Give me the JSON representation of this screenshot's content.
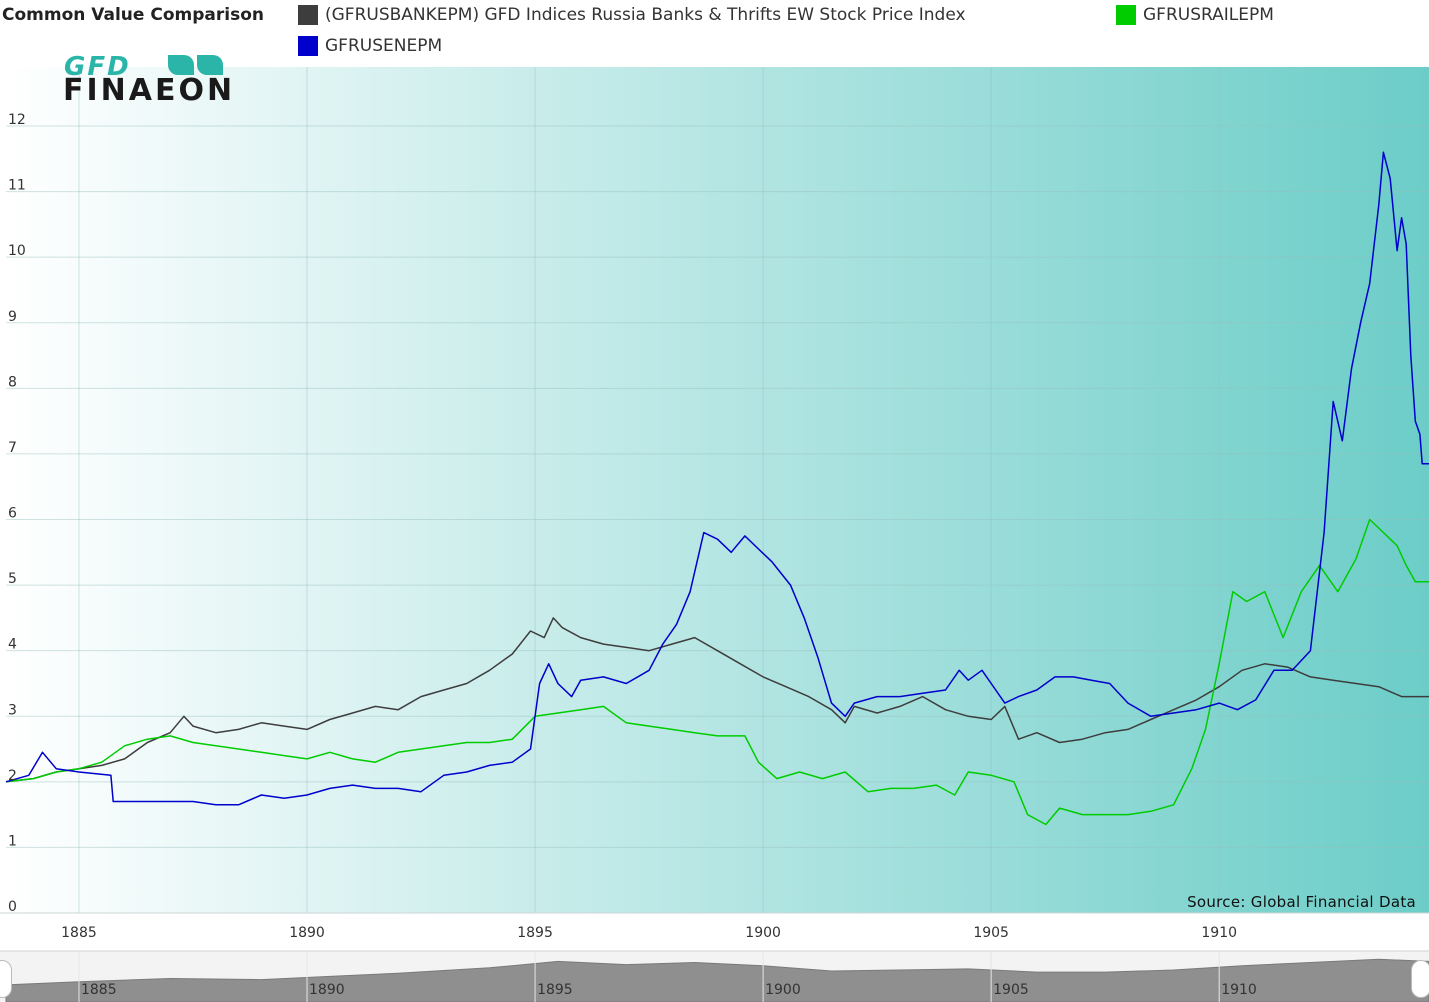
{
  "header": {
    "title": "Common Value Comparison",
    "source": "Source: Global Financial Data",
    "logo_top": "GFD",
    "logo_bottom": "FINAEON"
  },
  "legend": [
    {
      "label": "(GFRUSBANKEPM) GFD Indices Russia Banks & Thrifts EW Stock Price Index",
      "color": "#3d3d3d"
    },
    {
      "label": "GFRUSRAILEPM",
      "color": "#00cc00"
    },
    {
      "label": "GFRUSENEPM",
      "color": "#0000cc"
    }
  ],
  "colors": {
    "plot_bg_start": "#ffffff",
    "plot_bg_end": "#6ccdc8",
    "grid": "#d0e4e4",
    "navigator_fill": "#8a8a8a",
    "axis_text": "#333333"
  },
  "chart_data": {
    "type": "line",
    "title": "Common Value Comparison",
    "xlim": [
      1883.4,
      1914.6
    ],
    "ylim": [
      0,
      12.9
    ],
    "x_ticks": [
      1885,
      1890,
      1895,
      1900,
      1905,
      1910
    ],
    "x_tick_labels": [
      "1885",
      "1890",
      "1895",
      "1900",
      "1905",
      "1910"
    ],
    "y_ticks": [
      0,
      1,
      2,
      3,
      4,
      5,
      6,
      7,
      8,
      9,
      10,
      11,
      12
    ],
    "y_tick_labels": [
      "0",
      "1",
      "2",
      "3",
      "4",
      "5",
      "6",
      "7",
      "8",
      "9",
      "10",
      "11",
      "12"
    ],
    "grid": true,
    "legend_position": "top",
    "series": [
      {
        "name": "(GFRUSBANKEPM) GFD Indices Russia Banks & Thrifts EW Stock Price Index",
        "color": "#3d3d3d",
        "points": [
          [
            1883.4,
            2.0
          ],
          [
            1884.0,
            2.05
          ],
          [
            1884.5,
            2.15
          ],
          [
            1885.0,
            2.2
          ],
          [
            1885.5,
            2.25
          ],
          [
            1886.0,
            2.35
          ],
          [
            1886.5,
            2.6
          ],
          [
            1887.0,
            2.75
          ],
          [
            1887.3,
            3.0
          ],
          [
            1887.5,
            2.85
          ],
          [
            1888.0,
            2.75
          ],
          [
            1888.5,
            2.8
          ],
          [
            1889.0,
            2.9
          ],
          [
            1889.5,
            2.85
          ],
          [
            1890.0,
            2.8
          ],
          [
            1890.5,
            2.95
          ],
          [
            1891.0,
            3.05
          ],
          [
            1891.5,
            3.15
          ],
          [
            1892.0,
            3.1
          ],
          [
            1892.5,
            3.3
          ],
          [
            1893.0,
            3.4
          ],
          [
            1893.5,
            3.5
          ],
          [
            1894.0,
            3.7
          ],
          [
            1894.5,
            3.95
          ],
          [
            1894.9,
            4.3
          ],
          [
            1895.2,
            4.2
          ],
          [
            1895.4,
            4.5
          ],
          [
            1895.6,
            4.35
          ],
          [
            1896.0,
            4.2
          ],
          [
            1896.5,
            4.1
          ],
          [
            1897.0,
            4.05
          ],
          [
            1897.5,
            4.0
          ],
          [
            1898.0,
            4.1
          ],
          [
            1898.5,
            4.2
          ],
          [
            1899.0,
            4.0
          ],
          [
            1899.5,
            3.8
          ],
          [
            1900.0,
            3.6
          ],
          [
            1900.5,
            3.45
          ],
          [
            1901.0,
            3.3
          ],
          [
            1901.5,
            3.1
          ],
          [
            1901.8,
            2.9
          ],
          [
            1902.0,
            3.15
          ],
          [
            1902.5,
            3.05
          ],
          [
            1903.0,
            3.15
          ],
          [
            1903.5,
            3.3
          ],
          [
            1904.0,
            3.1
          ],
          [
            1904.5,
            3.0
          ],
          [
            1905.0,
            2.95
          ],
          [
            1905.3,
            3.15
          ],
          [
            1905.6,
            2.65
          ],
          [
            1906.0,
            2.75
          ],
          [
            1906.5,
            2.6
          ],
          [
            1907.0,
            2.65
          ],
          [
            1907.5,
            2.75
          ],
          [
            1908.0,
            2.8
          ],
          [
            1908.5,
            2.95
          ],
          [
            1909.0,
            3.1
          ],
          [
            1909.5,
            3.25
          ],
          [
            1910.0,
            3.45
          ],
          [
            1910.5,
            3.7
          ],
          [
            1911.0,
            3.8
          ],
          [
            1911.5,
            3.75
          ],
          [
            1912.0,
            3.6
          ],
          [
            1912.5,
            3.55
          ],
          [
            1913.0,
            3.5
          ],
          [
            1913.5,
            3.45
          ],
          [
            1914.0,
            3.3
          ],
          [
            1914.6,
            3.3
          ]
        ]
      },
      {
        "name": "GFRUSRAILEPM",
        "color": "#00cc00",
        "points": [
          [
            1883.4,
            2.0
          ],
          [
            1884.0,
            2.05
          ],
          [
            1884.5,
            2.15
          ],
          [
            1885.0,
            2.2
          ],
          [
            1885.5,
            2.3
          ],
          [
            1886.0,
            2.55
          ],
          [
            1886.5,
            2.65
          ],
          [
            1887.0,
            2.7
          ],
          [
            1887.5,
            2.6
          ],
          [
            1888.0,
            2.55
          ],
          [
            1888.5,
            2.5
          ],
          [
            1889.0,
            2.45
          ],
          [
            1889.5,
            2.4
          ],
          [
            1890.0,
            2.35
          ],
          [
            1890.5,
            2.45
          ],
          [
            1891.0,
            2.35
          ],
          [
            1891.5,
            2.3
          ],
          [
            1892.0,
            2.45
          ],
          [
            1892.5,
            2.5
          ],
          [
            1893.0,
            2.55
          ],
          [
            1893.5,
            2.6
          ],
          [
            1894.0,
            2.6
          ],
          [
            1894.5,
            2.65
          ],
          [
            1895.0,
            3.0
          ],
          [
            1895.5,
            3.05
          ],
          [
            1896.0,
            3.1
          ],
          [
            1896.5,
            3.15
          ],
          [
            1897.0,
            2.9
          ],
          [
            1897.5,
            2.85
          ],
          [
            1898.0,
            2.8
          ],
          [
            1898.5,
            2.75
          ],
          [
            1899.0,
            2.7
          ],
          [
            1899.6,
            2.7
          ],
          [
            1899.9,
            2.3
          ],
          [
            1900.3,
            2.05
          ],
          [
            1900.8,
            2.15
          ],
          [
            1901.3,
            2.05
          ],
          [
            1901.8,
            2.15
          ],
          [
            1902.3,
            1.85
          ],
          [
            1902.8,
            1.9
          ],
          [
            1903.3,
            1.9
          ],
          [
            1903.8,
            1.95
          ],
          [
            1904.2,
            1.8
          ],
          [
            1904.5,
            2.15
          ],
          [
            1905.0,
            2.1
          ],
          [
            1905.5,
            2.0
          ],
          [
            1905.8,
            1.5
          ],
          [
            1906.2,
            1.35
          ],
          [
            1906.5,
            1.6
          ],
          [
            1907.0,
            1.5
          ],
          [
            1907.5,
            1.5
          ],
          [
            1908.0,
            1.5
          ],
          [
            1908.5,
            1.55
          ],
          [
            1909.0,
            1.65
          ],
          [
            1909.4,
            2.2
          ],
          [
            1909.7,
            2.8
          ],
          [
            1910.0,
            3.8
          ],
          [
            1910.3,
            4.9
          ],
          [
            1910.6,
            4.75
          ],
          [
            1911.0,
            4.9
          ],
          [
            1911.4,
            4.2
          ],
          [
            1911.8,
            4.9
          ],
          [
            1912.2,
            5.3
          ],
          [
            1912.6,
            4.9
          ],
          [
            1913.0,
            5.4
          ],
          [
            1913.3,
            6.0
          ],
          [
            1913.6,
            5.8
          ],
          [
            1913.9,
            5.6
          ],
          [
            1914.1,
            5.3
          ],
          [
            1914.3,
            5.05
          ],
          [
            1914.6,
            5.05
          ]
        ]
      },
      {
        "name": "GFRUSENEPM",
        "color": "#0000cc",
        "points": [
          [
            1883.4,
            2.0
          ],
          [
            1883.9,
            2.1
          ],
          [
            1884.2,
            2.45
          ],
          [
            1884.5,
            2.2
          ],
          [
            1885.0,
            2.15
          ],
          [
            1885.7,
            2.1
          ],
          [
            1885.75,
            1.7
          ],
          [
            1886.5,
            1.7
          ],
          [
            1887.5,
            1.7
          ],
          [
            1888.0,
            1.65
          ],
          [
            1888.5,
            1.65
          ],
          [
            1889.0,
            1.8
          ],
          [
            1889.5,
            1.75
          ],
          [
            1890.0,
            1.8
          ],
          [
            1890.5,
            1.9
          ],
          [
            1891.0,
            1.95
          ],
          [
            1891.5,
            1.9
          ],
          [
            1892.0,
            1.9
          ],
          [
            1892.5,
            1.85
          ],
          [
            1893.0,
            2.1
          ],
          [
            1893.5,
            2.15
          ],
          [
            1894.0,
            2.25
          ],
          [
            1894.5,
            2.3
          ],
          [
            1894.9,
            2.5
          ],
          [
            1895.1,
            3.5
          ],
          [
            1895.3,
            3.8
          ],
          [
            1895.5,
            3.5
          ],
          [
            1895.8,
            3.3
          ],
          [
            1896.0,
            3.55
          ],
          [
            1896.5,
            3.6
          ],
          [
            1897.0,
            3.5
          ],
          [
            1897.5,
            3.7
          ],
          [
            1897.8,
            4.1
          ],
          [
            1898.1,
            4.4
          ],
          [
            1898.4,
            4.9
          ],
          [
            1898.7,
            5.8
          ],
          [
            1899.0,
            5.7
          ],
          [
            1899.3,
            5.5
          ],
          [
            1899.6,
            5.75
          ],
          [
            1899.9,
            5.55
          ],
          [
            1900.2,
            5.35
          ],
          [
            1900.6,
            5.0
          ],
          [
            1900.9,
            4.5
          ],
          [
            1901.2,
            3.9
          ],
          [
            1901.5,
            3.2
          ],
          [
            1901.8,
            3.0
          ],
          [
            1902.0,
            3.2
          ],
          [
            1902.5,
            3.3
          ],
          [
            1903.0,
            3.3
          ],
          [
            1903.5,
            3.35
          ],
          [
            1904.0,
            3.4
          ],
          [
            1904.3,
            3.7
          ],
          [
            1904.5,
            3.55
          ],
          [
            1904.8,
            3.7
          ],
          [
            1905.0,
            3.5
          ],
          [
            1905.3,
            3.2
          ],
          [
            1905.6,
            3.3
          ],
          [
            1906.0,
            3.4
          ],
          [
            1906.4,
            3.6
          ],
          [
            1906.8,
            3.6
          ],
          [
            1907.2,
            3.55
          ],
          [
            1907.6,
            3.5
          ],
          [
            1908.0,
            3.2
          ],
          [
            1908.5,
            3.0
          ],
          [
            1909.0,
            3.05
          ],
          [
            1909.5,
            3.1
          ],
          [
            1910.0,
            3.2
          ],
          [
            1910.4,
            3.1
          ],
          [
            1910.8,
            3.25
          ],
          [
            1911.2,
            3.7
          ],
          [
            1911.6,
            3.7
          ],
          [
            1912.0,
            4.0
          ],
          [
            1912.3,
            5.8
          ],
          [
            1912.5,
            7.8
          ],
          [
            1912.7,
            7.2
          ],
          [
            1912.9,
            8.3
          ],
          [
            1913.1,
            9.0
          ],
          [
            1913.3,
            9.6
          ],
          [
            1913.5,
            10.8
          ],
          [
            1913.6,
            11.6
          ],
          [
            1913.75,
            11.2
          ],
          [
            1913.9,
            10.1
          ],
          [
            1914.0,
            10.6
          ],
          [
            1914.1,
            10.2
          ],
          [
            1914.2,
            8.5
          ],
          [
            1914.3,
            7.5
          ],
          [
            1914.4,
            7.3
          ],
          [
            1914.45,
            6.85
          ],
          [
            1914.6,
            6.85
          ]
        ]
      }
    ],
    "navigator": [
      [
        1883.4,
        0.8
      ],
      [
        1885.0,
        0.95
      ],
      [
        1887.0,
        1.1
      ],
      [
        1889.0,
        1.05
      ],
      [
        1890.5,
        1.2
      ],
      [
        1892.0,
        1.35
      ],
      [
        1894.0,
        1.6
      ],
      [
        1895.5,
        1.9
      ],
      [
        1897.0,
        1.75
      ],
      [
        1898.5,
        1.85
      ],
      [
        1900.0,
        1.7
      ],
      [
        1901.5,
        1.45
      ],
      [
        1903.0,
        1.5
      ],
      [
        1904.5,
        1.55
      ],
      [
        1906.0,
        1.4
      ],
      [
        1907.5,
        1.4
      ],
      [
        1909.0,
        1.5
      ],
      [
        1910.5,
        1.7
      ],
      [
        1912.0,
        1.85
      ],
      [
        1913.5,
        2.0
      ],
      [
        1914.6,
        1.9
      ]
    ],
    "navigator_labels": [
      "1885",
      "1890",
      "1895",
      "1900",
      "1905",
      "1910"
    ]
  }
}
